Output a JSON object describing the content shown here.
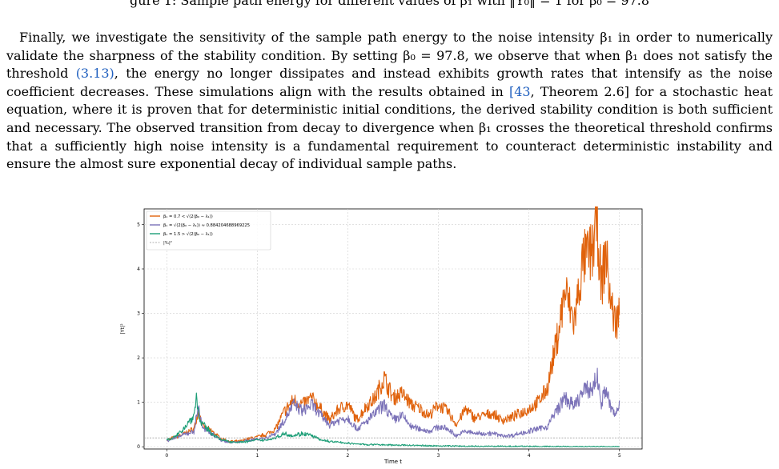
{
  "top_caption": "gure 1: Sample path energy for different values of β₁ with ‖Y₀‖ = 1 for β₀ = 97.8",
  "paragraph": {
    "segments": [
      {
        "text": " Finally, we investigate the sensitivity of the sample path energy to the noise intensity β₁ in order to numerically validate the sharpness of the stability condition. By setting β₀ = 97.8, we observe that when β₁ does not satisfy the threshold "
      },
      {
        "text": "(3.13)",
        "link": true
      },
      {
        "text": ", the energy no longer dissipates and instead exhibits growth rates that intensify as the noise coefficient decreases. These simulations align with the results obtained in "
      },
      {
        "text": "[43",
        "link": true
      },
      {
        "text": ", Theorem 2.6] for a stochastic heat equation, where it is proven that for deterministic initial conditions, the derived stability condition is both sufficient and necessary. The observed transition from decay to divergence when β₁ crosses the theoretical threshold confirms that a sufficiently high noise intensity is a fundamental requirement to counteract deterministic instability and ensure the almost sure exponential decay of individual sample paths."
      }
    ]
  },
  "colors": {
    "orange": "#e0620c",
    "purple": "#7b72b8",
    "green": "#1c9e77",
    "threshold": "#999999",
    "link": "#1f5fbf"
  },
  "chart_data": {
    "type": "line",
    "title": "",
    "xlabel": "Time t",
    "ylabel": "|Yt|²",
    "xlim": [
      -0.25,
      5.25
    ],
    "ylim": [
      -0.05,
      5.35
    ],
    "xticks": [
      0,
      1,
      2,
      3,
      4,
      5
    ],
    "yticks": [
      0,
      1,
      2,
      3,
      4,
      5
    ],
    "grid": true,
    "legend_position": "top-left",
    "series": [
      {
        "name": "β₁ = 0.7 < √(2(β₀ − λ₁))",
        "color": "#e0620c",
        "x": [
          0,
          0.1,
          0.2,
          0.3,
          0.35,
          0.4,
          0.5,
          0.6,
          0.7,
          0.8,
          0.9,
          1.0,
          1.1,
          1.2,
          1.3,
          1.4,
          1.5,
          1.6,
          1.7,
          1.8,
          1.9,
          2.0,
          2.1,
          2.2,
          2.3,
          2.4,
          2.5,
          2.6,
          2.7,
          2.8,
          2.9,
          3.0,
          3.1,
          3.2,
          3.3,
          3.4,
          3.5,
          3.6,
          3.7,
          3.8,
          3.9,
          4.0,
          4.1,
          4.2,
          4.3,
          4.4,
          4.5,
          4.6,
          4.7,
          4.75,
          4.8,
          4.85,
          4.9,
          4.95,
          5.0
        ],
        "y": [
          0.15,
          0.22,
          0.3,
          0.4,
          0.8,
          0.45,
          0.35,
          0.18,
          0.12,
          0.12,
          0.18,
          0.22,
          0.28,
          0.4,
          0.8,
          1.05,
          0.95,
          1.1,
          0.85,
          0.6,
          0.85,
          0.95,
          0.6,
          0.9,
          1.1,
          1.55,
          1.1,
          1.2,
          0.95,
          0.85,
          0.7,
          0.95,
          0.8,
          0.5,
          0.85,
          0.65,
          0.7,
          0.75,
          0.6,
          0.65,
          0.75,
          0.85,
          1.0,
          1.3,
          2.3,
          3.5,
          2.8,
          4.2,
          4.4,
          5.1,
          3.6,
          4.4,
          3.3,
          2.8,
          3.0
        ]
      },
      {
        "name": "β₁ = √(2(β₀ − λ₁)) ≈ 0.884204688969225",
        "color": "#7b72b8",
        "x": [
          0,
          0.1,
          0.2,
          0.3,
          0.35,
          0.4,
          0.5,
          0.6,
          0.7,
          0.8,
          0.9,
          1.0,
          1.1,
          1.2,
          1.3,
          1.4,
          1.5,
          1.6,
          1.7,
          1.8,
          1.9,
          2.0,
          2.1,
          2.2,
          2.3,
          2.4,
          2.5,
          2.6,
          2.7,
          2.8,
          2.9,
          3.0,
          3.1,
          3.2,
          3.3,
          3.4,
          3.5,
          3.6,
          3.7,
          3.8,
          3.9,
          4.0,
          4.1,
          4.2,
          4.3,
          4.4,
          4.5,
          4.6,
          4.7,
          4.75,
          4.8,
          4.85,
          4.9,
          4.95,
          5.0
        ],
        "y": [
          0.14,
          0.2,
          0.28,
          0.35,
          0.9,
          0.4,
          0.3,
          0.15,
          0.1,
          0.1,
          0.14,
          0.18,
          0.2,
          0.3,
          0.6,
          0.95,
          0.8,
          0.95,
          0.7,
          0.5,
          0.6,
          0.65,
          0.4,
          0.55,
          0.75,
          0.95,
          0.6,
          0.7,
          0.45,
          0.4,
          0.35,
          0.45,
          0.4,
          0.25,
          0.35,
          0.3,
          0.3,
          0.3,
          0.25,
          0.25,
          0.3,
          0.35,
          0.4,
          0.45,
          0.8,
          1.1,
          0.9,
          1.25,
          1.3,
          1.6,
          1.0,
          1.3,
          0.9,
          0.7,
          0.95
        ]
      },
      {
        "name": "β₁ = 1.5 > √(2(β₀ − λ₁))",
        "color": "#1c9e77",
        "x": [
          0,
          0.1,
          0.2,
          0.3,
          0.33,
          0.36,
          0.4,
          0.5,
          0.6,
          0.7,
          0.8,
          0.9,
          1.0,
          1.1,
          1.2,
          1.3,
          1.4,
          1.5,
          1.6,
          1.7,
          1.8,
          1.9,
          2.0,
          2.2,
          2.5,
          3.0,
          3.5,
          4.0,
          4.5,
          5.0
        ],
        "y": [
          0.16,
          0.22,
          0.45,
          0.7,
          1.15,
          0.6,
          0.5,
          0.3,
          0.15,
          0.12,
          0.1,
          0.12,
          0.15,
          0.15,
          0.2,
          0.3,
          0.25,
          0.3,
          0.25,
          0.15,
          0.12,
          0.1,
          0.08,
          0.05,
          0.04,
          0.02,
          0.01,
          0.01,
          0.0,
          0.0
        ]
      },
      {
        "name": "|Y₀|²",
        "color": "#999999",
        "dashed": true,
        "x": [
          -0.25,
          5.25
        ],
        "y": [
          0.2,
          0.2
        ]
      }
    ]
  }
}
